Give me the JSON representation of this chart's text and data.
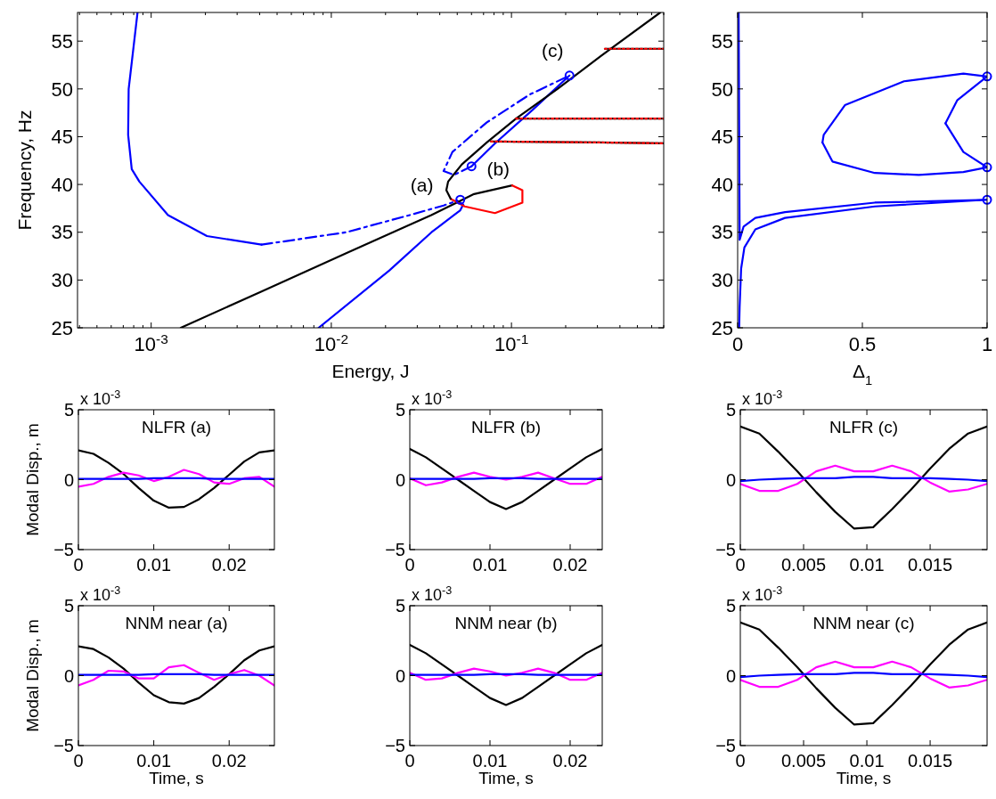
{
  "chart_data": [
    {
      "type": "line",
      "xlabel": "Energy, J",
      "ylabel": "Frequency, Hz",
      "log": "x",
      "xlim": [
        0.00039,
        0.7
      ],
      "ylim": [
        25,
        58
      ],
      "xticks": [
        {
          "value": 0.0004,
          "label": null
        },
        {
          "value": 0.0005,
          "label": null
        },
        {
          "value": 0.0006,
          "label": null
        },
        {
          "value": 0.0007,
          "label": null
        },
        {
          "value": 0.0008,
          "label": null
        },
        {
          "value": 0.0009,
          "label": null
        },
        {
          "value": 0.001,
          "label": "10$^{-3}$"
        },
        {
          "value": 0.002,
          "label": null
        },
        {
          "value": 0.003,
          "label": null
        },
        {
          "value": 0.004,
          "label": null
        },
        {
          "value": 0.005,
          "label": null
        },
        {
          "value": 0.006,
          "label": null
        },
        {
          "value": 0.007,
          "label": null
        },
        {
          "value": 0.008,
          "label": null
        },
        {
          "value": 0.009,
          "label": null
        },
        {
          "value": 0.01,
          "label": "10$^{-2}$"
        },
        {
          "value": 0.02,
          "label": null
        },
        {
          "value": 0.03,
          "label": null
        },
        {
          "value": 0.04,
          "label": null
        },
        {
          "value": 0.05,
          "label": null
        },
        {
          "value": 0.06,
          "label": null
        },
        {
          "value": 0.07,
          "label": null
        },
        {
          "value": 0.08,
          "label": null
        },
        {
          "value": 0.09,
          "label": null
        },
        {
          "value": 0.1,
          "label": "10$^{-1}$"
        },
        {
          "value": 0.2,
          "label": null
        },
        {
          "value": 0.3,
          "label": null
        },
        {
          "value": 0.4,
          "label": null
        },
        {
          "value": 0.5,
          "label": null
        },
        {
          "value": 0.6,
          "label": null
        },
        {
          "value": 0.7,
          "label": null
        }
      ],
      "yticks": [
        25,
        30,
        35,
        40,
        45,
        50,
        55
      ],
      "annotations": [
        {
          "text": "(a)",
          "x": 0.052,
          "y": 38.4
        },
        {
          "text": "(b)",
          "x": 0.06,
          "y": 41.9
        },
        {
          "text": "(c)",
          "x": 0.21,
          "y": 51.4
        }
      ],
      "series": [
        {
          "color": "#0000ff",
          "line_style": "solid",
          "x": [
            0.00084,
            0.00075,
            0.000745,
            0.00078,
            0.00086,
            0.00124,
            0.00204,
            0.0041
          ],
          "values": [
            58,
            50,
            45.2,
            41.6,
            40.3,
            36.8,
            34.6,
            33.7
          ]
        },
        {
          "color": "#0000ff",
          "line_style": "dashed",
          "x": [
            0.0041,
            0.0121,
            0.0273,
            0.042,
            0.05
          ],
          "values": [
            33.7,
            35.0,
            36.8,
            37.8,
            38.3
          ]
        },
        {
          "color": "#0000ff",
          "line_style": "solid",
          "x": [
            0.05,
            0.054,
            0.052,
            0.036,
            0.021,
            0.0085
          ],
          "values": [
            38.3,
            37.9,
            37.3,
            35.0,
            31.0,
            25
          ]
        },
        {
          "color": "#0000ff",
          "line_style": "dashed",
          "x": [
            0.06,
            0.048,
            0.042,
            0.047,
            0.073,
            0.126,
            0.21
          ],
          "values": [
            41.9,
            41.0,
            41.4,
            43.4,
            46.5,
            49.4,
            51.4
          ]
        },
        {
          "color": "#0000ff",
          "line_style": "solid",
          "x": [
            0.06,
            0.081,
            0.131,
            0.21
          ],
          "values": [
            41.9,
            44.3,
            47.8,
            51.4
          ]
        },
        {
          "color": "#000000",
          "line_style": "solid",
          "x": [
            0.00146,
            0.0041,
            0.0121,
            0.0359,
            0.062,
            0.101
          ],
          "values": [
            25,
            28.8,
            32.8,
            36.8,
            39.0,
            39.9
          ]
        },
        {
          "color": "#ff0000",
          "line_style": "solid",
          "x": [
            0.101,
            0.115,
            0.115,
            0.081,
            0.055,
            0.046
          ],
          "values": [
            39.9,
            39.4,
            38.1,
            37.0,
            37.7,
            38.5
          ]
        },
        {
          "color": "#000000",
          "line_style": "solid",
          "x": [
            0.046,
            0.0435,
            0.0445,
            0.053,
            0.073,
            0.106,
            0.18,
            0.316,
            0.67
          ],
          "values": [
            38.5,
            39.4,
            40.3,
            42.1,
            44.4,
            46.9,
            50.0,
            53.5,
            58
          ]
        },
        {
          "color": "#000000",
          "line_style": "solid",
          "x": [
            0.33,
            0.7,
            0.69,
            0.106,
            0.7,
            0.69,
            0.077,
            0.3,
            0.7
          ],
          "values": [
            54.2,
            54.2,
            null,
            46.9,
            46.9,
            null,
            44.5,
            44.4,
            44.3
          ]
        },
        {
          "color": "#ff0000",
          "line_style": "dotted",
          "x": [
            0.33,
            0.7,
            0.69,
            0.106,
            0.7,
            0.69,
            0.077,
            0.3,
            0.7
          ],
          "values": [
            54.2,
            54.2,
            null,
            46.9,
            46.9,
            null,
            44.5,
            44.4,
            44.3
          ]
        },
        {
          "type": "scatter",
          "marker": "circle",
          "color": "#0000ff",
          "x": [
            0.052,
            0.06,
            0.21
          ],
          "values": [
            38.4,
            41.9,
            51.4
          ]
        }
      ]
    },
    {
      "type": "line",
      "xlabel": "Δ$_{1}$",
      "xlim": [
        0,
        1
      ],
      "ylim": [
        25,
        58
      ],
      "xticks": [
        0,
        0.5,
        1
      ],
      "yticks": [
        25,
        30,
        35,
        40,
        45,
        50,
        55
      ],
      "series": [
        {
          "color": "#0000ff",
          "line_style": "solid",
          "x": [
            0.34,
            0.345,
            0.43,
            0.667,
            0.905,
            1.0
          ],
          "values": [
            44.4,
            45.2,
            48.3,
            50.8,
            51.6,
            51.3
          ]
        },
        {
          "color": "#0000ff",
          "line_style": "solid",
          "x": [
            0.34,
            0.38,
            0.55,
            0.726,
            0.905,
            1.0
          ],
          "values": [
            44.4,
            42.4,
            41.2,
            41.0,
            41.3,
            41.8
          ]
        },
        {
          "color": "#0000ff",
          "line_style": "solid",
          "x": [
            0.833,
            0.88,
            1.0
          ],
          "values": [
            46.4,
            48.8,
            51.3
          ]
        },
        {
          "color": "#0000ff",
          "line_style": "solid",
          "x": [
            0.833,
            0.905,
            1.0
          ],
          "values": [
            46.4,
            43.4,
            41.8
          ]
        },
        {
          "color": "#0000ff",
          "line_style": "solid",
          "x": [
            0.004,
            0.008,
            0.024,
            0.071,
            0.19,
            0.55,
            1.0
          ],
          "values": [
            58,
            34.2,
            35.6,
            36.5,
            37.1,
            38.1,
            38.4
          ]
        },
        {
          "color": "#0000ff",
          "line_style": "solid",
          "x": [
            0.006,
            0.008,
            0.014,
            0.027,
            0.071,
            0.19,
            0.55,
            1.0
          ],
          "values": [
            25,
            27.2,
            31.2,
            33.4,
            35.3,
            36.5,
            37.7,
            38.4
          ]
        },
        {
          "type": "scatter",
          "marker": "circle",
          "color": "#0000ff",
          "x": [
            1,
            1,
            1
          ],
          "values": [
            51.3,
            41.8,
            38.4
          ]
        }
      ]
    },
    {
      "type": "line",
      "title": "NLFR (a)",
      "ylabel": "Modal Disp., m",
      "annotations": [
        "x 10$^{-3}$"
      ],
      "xlim": [
        0,
        0.026
      ],
      "ylim": [
        -5,
        5
      ],
      "xticks": [
        0,
        0.01,
        0.02
      ],
      "yticks": [
        -5,
        0,
        5
      ],
      "x": [
        0,
        0.002,
        0.004,
        0.006,
        0.008,
        0.01,
        0.012,
        0.014,
        0.016,
        0.018,
        0.02,
        0.022,
        0.024,
        0.026
      ],
      "series": [
        {
          "color": "#000000",
          "values": [
            2.1,
            1.85,
            1.2,
            0.4,
            -0.6,
            -1.5,
            -2.0,
            -1.95,
            -1.4,
            -0.6,
            0.35,
            1.3,
            1.95,
            2.1
          ]
        },
        {
          "color": "#ff00ff",
          "values": [
            -0.5,
            -0.3,
            0.2,
            0.5,
            0.3,
            -0.1,
            0.2,
            0.7,
            0.4,
            -0.2,
            -0.3,
            0.1,
            0.2,
            -0.5
          ]
        },
        {
          "color": "#0000ff",
          "values": [
            0.05,
            0.05,
            0.05,
            0.05,
            0.05,
            0.1,
            0.1,
            0.1,
            0.1,
            0.05,
            0.05,
            0.05,
            0.05,
            0.05
          ]
        }
      ]
    },
    {
      "type": "line",
      "title": "NLFR (b)",
      "annotations": [
        "x 10$^{-3}$"
      ],
      "xlim": [
        0,
        0.024
      ],
      "ylim": [
        -5,
        5
      ],
      "xticks": [
        0,
        0.01,
        0.02
      ],
      "yticks": [
        -5,
        0,
        5
      ],
      "x": [
        0,
        0.002,
        0.004,
        0.006,
        0.008,
        0.01,
        0.012,
        0.014,
        0.016,
        0.018,
        0.02,
        0.022,
        0.024
      ],
      "series": [
        {
          "color": "#000000",
          "values": [
            2.2,
            1.6,
            0.8,
            0.0,
            -0.8,
            -1.6,
            -2.1,
            -1.6,
            -0.8,
            0.0,
            0.8,
            1.6,
            2.2
          ]
        },
        {
          "color": "#ff00ff",
          "values": [
            0.1,
            -0.4,
            -0.2,
            0.2,
            0.5,
            0.2,
            0.0,
            0.2,
            0.5,
            0.1,
            -0.3,
            -0.3,
            0.2
          ]
        },
        {
          "color": "#0000ff",
          "values": [
            0.05,
            0.05,
            0.05,
            0.05,
            0.05,
            0.1,
            0.1,
            0.1,
            0.05,
            0.05,
            0.05,
            0.05,
            0.05
          ]
        }
      ]
    },
    {
      "type": "line",
      "title": "NLFR (c)",
      "annotations": [
        "x 10$^{-3}$"
      ],
      "xlim": [
        0,
        0.0195
      ],
      "ylim": [
        -5,
        5
      ],
      "xticks": [
        0,
        0.005,
        0.01,
        0.015
      ],
      "yticks": [
        -5,
        0,
        5
      ],
      "x": [
        0,
        0.0015,
        0.003,
        0.0045,
        0.006,
        0.0075,
        0.009,
        0.0105,
        0.012,
        0.0135,
        0.015,
        0.0165,
        0.018,
        0.0195
      ],
      "series": [
        {
          "color": "#000000",
          "values": [
            3.8,
            3.3,
            2.0,
            0.6,
            -0.9,
            -2.3,
            -3.5,
            -3.4,
            -2.1,
            -0.7,
            0.8,
            2.2,
            3.3,
            3.8
          ]
        },
        {
          "color": "#ff00ff",
          "values": [
            -0.3,
            -0.8,
            -0.8,
            -0.3,
            0.6,
            1.0,
            0.6,
            0.6,
            1.0,
            0.6,
            -0.2,
            -0.85,
            -0.7,
            -0.3
          ]
        },
        {
          "color": "#0000ff",
          "values": [
            -0.1,
            0.0,
            0.05,
            0.1,
            0.1,
            0.1,
            0.2,
            0.2,
            0.1,
            0.1,
            0.1,
            0.05,
            0.0,
            -0.1
          ]
        }
      ]
    },
    {
      "type": "line",
      "title": "NNM near (a)",
      "xlabel": "Time, s",
      "ylabel": "Modal Disp., m",
      "annotations": [
        "x 10$^{-3}$"
      ],
      "xlim": [
        0,
        0.026
      ],
      "ylim": [
        -5,
        5
      ],
      "xticks": [
        0,
        0.01,
        0.02
      ],
      "yticks": [
        -5,
        0,
        5
      ],
      "x": [
        0,
        0.002,
        0.004,
        0.006,
        0.008,
        0.01,
        0.012,
        0.014,
        0.016,
        0.018,
        0.02,
        0.022,
        0.024,
        0.026
      ],
      "series": [
        {
          "color": "#000000",
          "values": [
            2.1,
            1.9,
            1.3,
            0.5,
            -0.5,
            -1.4,
            -1.9,
            -2.0,
            -1.6,
            -0.8,
            0.1,
            1.1,
            1.8,
            2.1
          ]
        },
        {
          "color": "#ff00ff",
          "values": [
            -0.7,
            -0.3,
            0.35,
            0.3,
            -0.2,
            -0.2,
            0.6,
            0.75,
            0.2,
            -0.3,
            0.1,
            0.4,
            0.0,
            -0.7
          ]
        },
        {
          "color": "#0000ff",
          "values": [
            0.05,
            0.05,
            0.05,
            0.05,
            0.05,
            0.1,
            0.1,
            0.1,
            0.1,
            0.05,
            0.05,
            0.05,
            0.05,
            0.05
          ]
        }
      ]
    },
    {
      "type": "line",
      "title": "NNM near (b)",
      "xlabel": "Time, s",
      "annotations": [
        "x 10$^{-3}$"
      ],
      "xlim": [
        0,
        0.024
      ],
      "ylim": [
        -5,
        5
      ],
      "xticks": [
        0,
        0.01,
        0.02
      ],
      "yticks": [
        -5,
        0,
        5
      ],
      "x": [
        0,
        0.002,
        0.004,
        0.006,
        0.008,
        0.01,
        0.012,
        0.014,
        0.016,
        0.018,
        0.02,
        0.022,
        0.024
      ],
      "series": [
        {
          "color": "#000000",
          "values": [
            2.2,
            1.6,
            0.8,
            0.0,
            -0.8,
            -1.6,
            -2.1,
            -1.6,
            -0.8,
            0.0,
            0.8,
            1.6,
            2.2
          ]
        },
        {
          "color": "#ff00ff",
          "values": [
            0.2,
            -0.3,
            -0.2,
            0.2,
            0.5,
            0.3,
            0.0,
            0.2,
            0.5,
            0.2,
            -0.3,
            -0.3,
            0.2
          ]
        },
        {
          "color": "#0000ff",
          "values": [
            0.05,
            0.05,
            0.05,
            0.05,
            0.05,
            0.1,
            0.1,
            0.1,
            0.05,
            0.05,
            0.05,
            0.05,
            0.05
          ]
        }
      ]
    },
    {
      "type": "line",
      "title": "NNM near (c)",
      "xlabel": "Time, s",
      "annotations": [
        "x 10$^{-3}$"
      ],
      "xlim": [
        0,
        0.0195
      ],
      "ylim": [
        -5,
        5
      ],
      "xticks": [
        0,
        0.005,
        0.01,
        0.015
      ],
      "yticks": [
        -5,
        0,
        5
      ],
      "x": [
        0,
        0.0015,
        0.003,
        0.0045,
        0.006,
        0.0075,
        0.009,
        0.0105,
        0.012,
        0.0135,
        0.015,
        0.0165,
        0.018,
        0.0195
      ],
      "series": [
        {
          "color": "#000000",
          "values": [
            3.8,
            3.3,
            2.0,
            0.6,
            -0.9,
            -2.3,
            -3.5,
            -3.4,
            -2.1,
            -0.7,
            0.8,
            2.2,
            3.3,
            3.8
          ]
        },
        {
          "color": "#ff00ff",
          "values": [
            -0.3,
            -0.8,
            -0.8,
            -0.3,
            0.6,
            1.0,
            0.6,
            0.6,
            1.0,
            0.6,
            -0.2,
            -0.85,
            -0.7,
            -0.3
          ]
        },
        {
          "color": "#0000ff",
          "values": [
            -0.1,
            0.0,
            0.05,
            0.1,
            0.1,
            0.1,
            0.2,
            0.2,
            0.1,
            0.1,
            0.1,
            0.05,
            0.0,
            -0.1
          ]
        }
      ]
    }
  ]
}
